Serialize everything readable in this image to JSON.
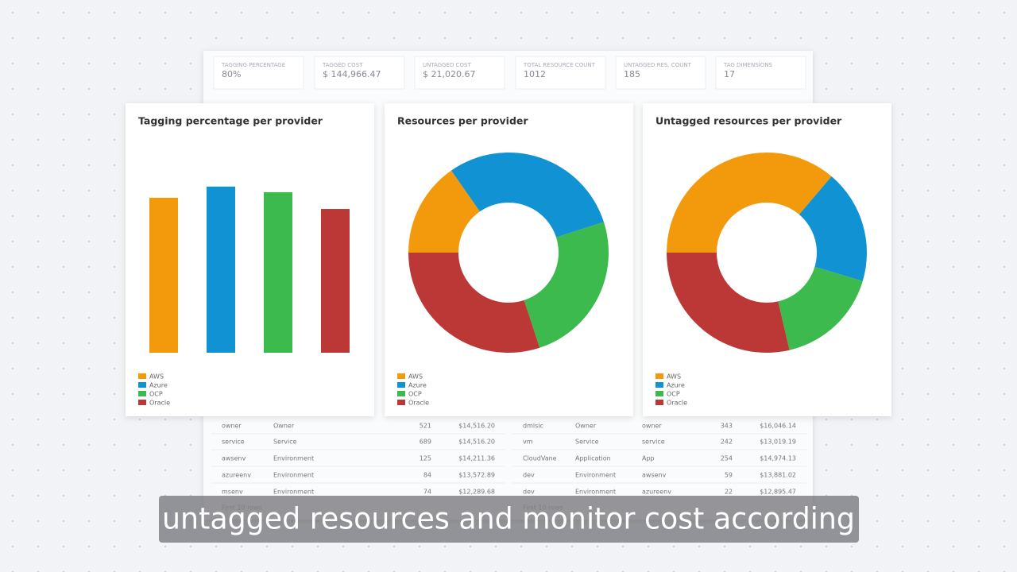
{
  "kpis": [
    {
      "label": "TAGGING PERCENTAGE",
      "value": "80%"
    },
    {
      "label": "TAGGED COST",
      "value": "$ 144,966.47"
    },
    {
      "label": "UNTAGGED COST",
      "value": "$ 21,020.67"
    },
    {
      "label": "TOTAL RESOURCE COUNT",
      "value": "1012"
    },
    {
      "label": "UNTAGGED RES. COUNT",
      "value": "185"
    },
    {
      "label": "TAG DIMENSIONS",
      "value": "17"
    }
  ],
  "chart_data": [
    {
      "type": "bar",
      "title": "Tagging percentage per provider",
      "categories": [
        "AWS",
        "Azure",
        "OCP",
        "Oracle"
      ],
      "values": [
        83,
        89,
        86,
        77
      ],
      "colors": [
        "#f29a0c",
        "#1192d3",
        "#3dba4e",
        "#bc3836"
      ],
      "ylim": [
        0,
        100
      ]
    },
    {
      "type": "donut",
      "title": "Resources per provider",
      "categories": [
        "AWS",
        "Azure",
        "OCP",
        "Oracle"
      ],
      "values": [
        155,
        301,
        252,
        304
      ],
      "colors": [
        "#f29a0c",
        "#1192d3",
        "#3dba4e",
        "#bc3836"
      ]
    },
    {
      "type": "donut",
      "title": "Untagged resources per provider",
      "categories": [
        "AWS",
        "Azure",
        "OCP",
        "Oracle"
      ],
      "values": [
        67,
        34,
        31,
        53
      ],
      "colors": [
        "#f29a0c",
        "#1192d3",
        "#3dba4e",
        "#bc3836"
      ]
    }
  ],
  "tables": [
    {
      "rows": [
        [
          "owner",
          "Owner",
          "521",
          "$14,516.20"
        ],
        [
          "service",
          "Service",
          "689",
          "$14,516.20"
        ],
        [
          "awsenv",
          "Environment",
          "125",
          "$14,211.36"
        ],
        [
          "azureenv",
          "Environment",
          "84",
          "$13,572.89"
        ],
        [
          "msenv",
          "Environment",
          "74",
          "$12,289.68"
        ]
      ],
      "footer": "First 10 rows"
    },
    {
      "rows": [
        [
          "dmisic",
          "Owner",
          "owner",
          "343",
          "$16,046.14"
        ],
        [
          "vm",
          "Service",
          "service",
          "242",
          "$13,019.19"
        ],
        [
          "CloudVane",
          "Application",
          "App",
          "254",
          "$14,974.13"
        ],
        [
          "dev",
          "Environment",
          "awsenv",
          "59",
          "$13,881.02"
        ],
        [
          "dev",
          "Environment",
          "azureenv",
          "22",
          "$12,895.47"
        ]
      ],
      "footer": "First 10 rows"
    }
  ],
  "caption": "untagged resources and monitor cost according"
}
